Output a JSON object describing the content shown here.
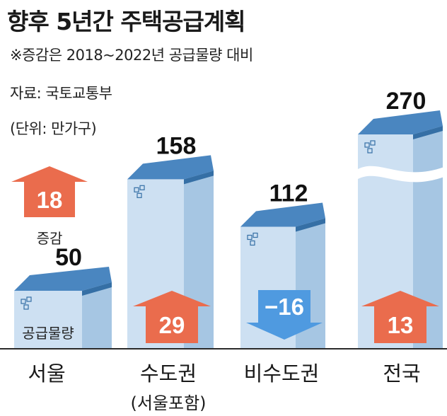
{
  "header": {
    "title": "향후 5년간 주택공급계획",
    "note": "※증감은 2018~2022년 공급물량 대비",
    "source": "자료: 국토교통부",
    "unit": "(단위: 만가구)"
  },
  "legend_labels": {
    "change": "증감",
    "supply": "공급물량"
  },
  "chart_data": {
    "type": "bar",
    "categories": [
      "서울",
      "수도권",
      "비수도권",
      "전국"
    ],
    "category_sublabels": [
      "",
      "(서울포함)",
      "",
      ""
    ],
    "series": [
      {
        "name": "공급물량",
        "values": [
          50,
          158,
          112,
          270
        ]
      },
      {
        "name": "증감",
        "values": [
          18,
          29,
          -16,
          13
        ]
      }
    ],
    "value_labels": [
      "50",
      "158",
      "112",
      "270"
    ],
    "change_labels": [
      "18",
      "29",
      "−16",
      "13"
    ],
    "broken_axis": true,
    "colors": {
      "building_front": "#cde0f2",
      "building_side": "#a6c6e3",
      "roof": "#4a86c0",
      "roof_side": "#356fa5",
      "arrow_up": "#ea6c4d",
      "arrow_down": "#4f9ae0",
      "baseline": "#2a2a2a"
    }
  }
}
